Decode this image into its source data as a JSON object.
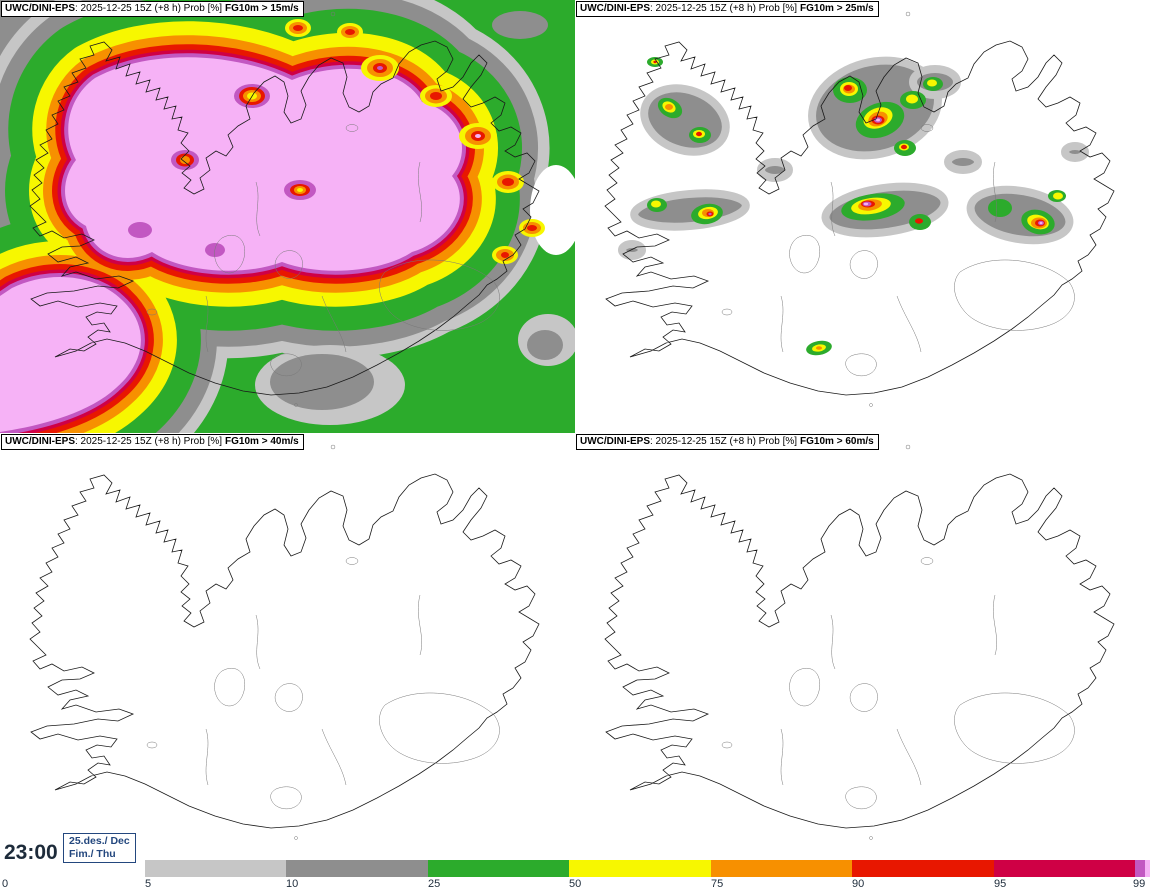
{
  "header": {
    "model": "UWC/DINI-EPS",
    "run_details": ": 2025-12-25 15Z (+8 h) Prob [%]"
  },
  "panels": [
    {
      "threshold": "FG10m > 15m/s"
    },
    {
      "threshold": "FG10m > 25m/s"
    },
    {
      "threshold": "FG10m > 40m/s"
    },
    {
      "threshold": "FG10m > 60m/s"
    }
  ],
  "footer": {
    "time": "23:00",
    "date_top": "25.des./ Dec",
    "date_bottom": "Fim./ Thu"
  },
  "legend": {
    "ticks": [
      "0",
      "5",
      "10",
      "25",
      "50",
      "75",
      "90",
      "95",
      "99"
    ],
    "segments": [
      {
        "range": "5-10",
        "color": "#c6c6c6"
      },
      {
        "range": "10-25",
        "color": "#8e8e8e"
      },
      {
        "range": "25-50",
        "color": "#2cab2c"
      },
      {
        "range": "50-75",
        "color": "#f7f700"
      },
      {
        "range": "75-90",
        "color": "#f79000"
      },
      {
        "range": "90-95",
        "color": "#e81700"
      },
      {
        "range": "95-99",
        "color": "#cf0045"
      },
      {
        "range": "99+",
        "color": "#c258c2"
      },
      {
        "range": "max",
        "color": "#f6b2f6"
      }
    ]
  },
  "colors": {
    "prob_5_10": "#c6c6c6",
    "prob_10_25": "#8e8e8e",
    "prob_25_50": "#2cab2c",
    "prob_50_75": "#f7f700",
    "prob_75_90": "#f79000",
    "prob_90_95": "#e81700",
    "prob_95_99": "#cf0045",
    "prob_99": "#c258c2",
    "prob_max": "#f6b2f6"
  }
}
